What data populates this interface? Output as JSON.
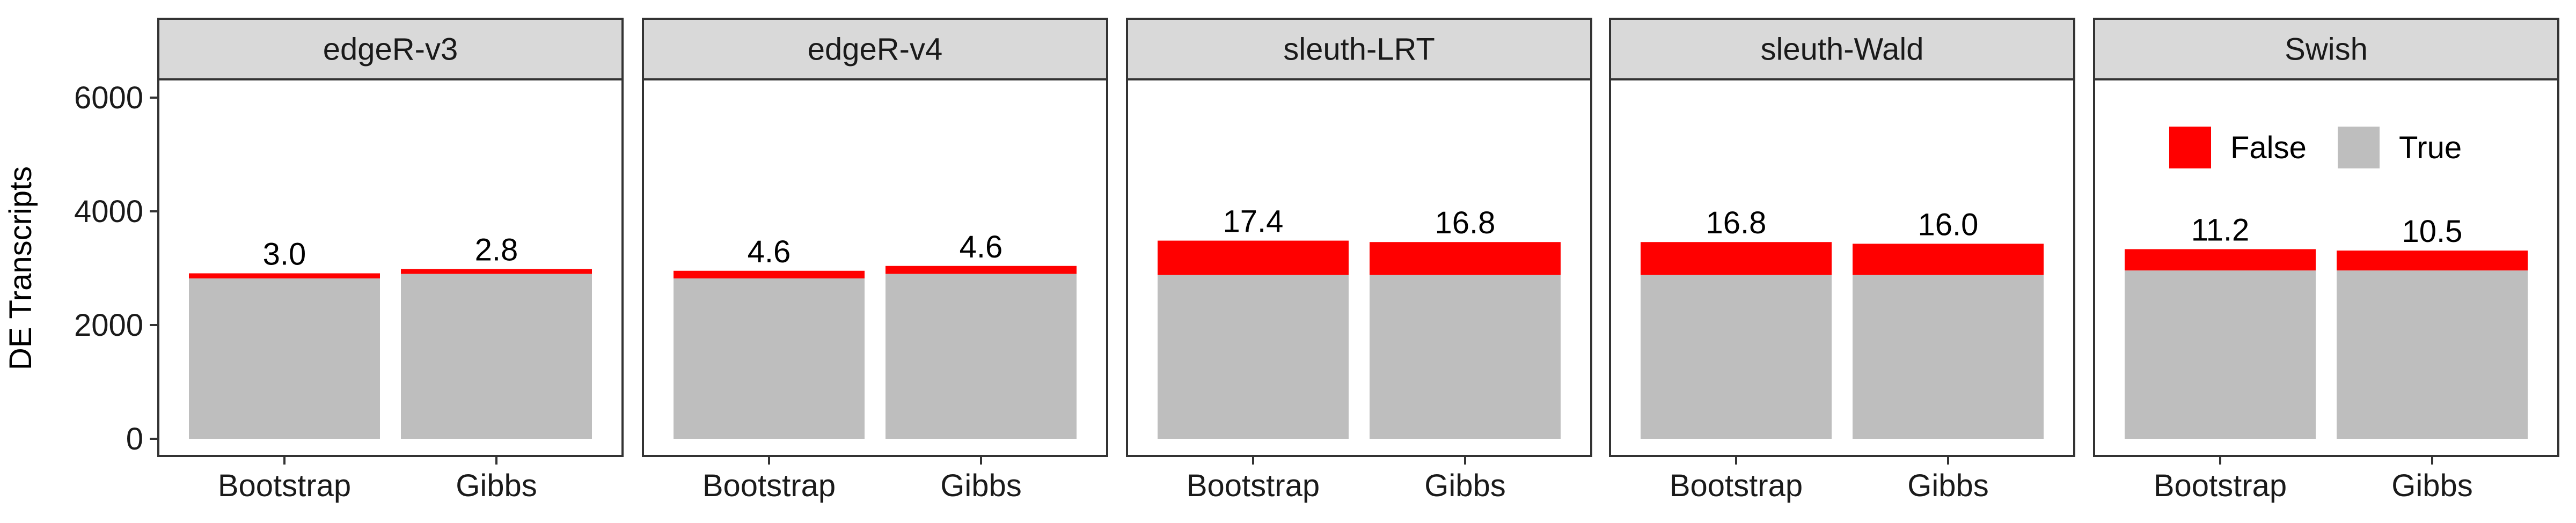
{
  "chart_data": {
    "type": "bar",
    "stacked": true,
    "ylabel": "DE Transcripts",
    "xlabel": "",
    "ylim": [
      0,
      6500
    ],
    "yticks": [
      0,
      2000,
      4000,
      6000
    ],
    "grid": false,
    "legend": {
      "position": "inside-top-right",
      "entries": [
        "False",
        "True"
      ]
    },
    "colors": {
      "False": "#ff0000",
      "True": "#bebebe"
    },
    "categories": [
      "Bootstrap",
      "Gibbs"
    ],
    "panels": [
      {
        "title": "edgeR-v3",
        "series": [
          {
            "name": "True",
            "values": [
              2820,
              2900
            ]
          },
          {
            "name": "False",
            "values": [
              90,
              85
            ]
          }
        ],
        "labels": [
          "3.0",
          "2.8"
        ]
      },
      {
        "title": "edgeR-v4",
        "series": [
          {
            "name": "True",
            "values": [
              2820,
              2900
            ]
          },
          {
            "name": "False",
            "values": [
              135,
              140
            ]
          }
        ],
        "labels": [
          "4.6",
          "4.6"
        ]
      },
      {
        "title": "sleuth-LRT",
        "series": [
          {
            "name": "True",
            "values": [
              2880,
              2880
            ]
          },
          {
            "name": "False",
            "values": [
              605,
              580
            ]
          }
        ],
        "labels": [
          "17.4",
          "16.8"
        ]
      },
      {
        "title": "sleuth-Wald",
        "series": [
          {
            "name": "True",
            "values": [
              2880,
              2880
            ]
          },
          {
            "name": "False",
            "values": [
              580,
              550
            ]
          }
        ],
        "labels": [
          "16.8",
          "16.0"
        ]
      },
      {
        "title": "Swish",
        "series": [
          {
            "name": "True",
            "values": [
              2960,
              2960
            ]
          },
          {
            "name": "False",
            "values": [
              375,
              350
            ]
          }
        ],
        "labels": [
          "11.2",
          "10.5"
        ]
      }
    ]
  }
}
